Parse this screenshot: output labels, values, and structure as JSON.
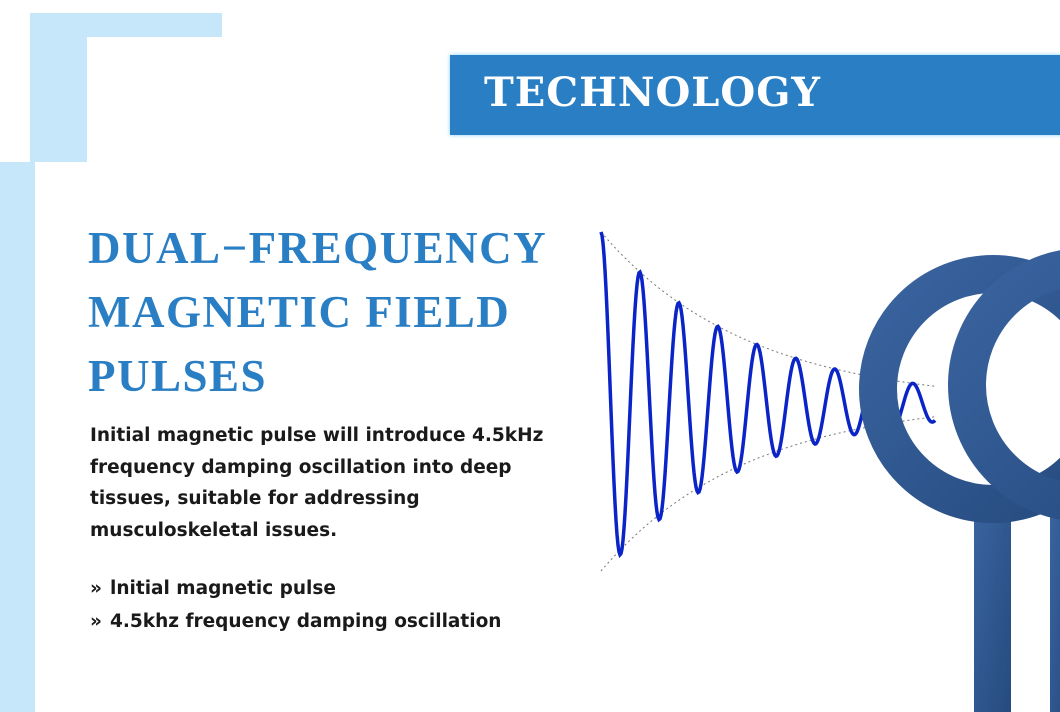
{
  "banner": {
    "title": "TECHNOLOGY"
  },
  "heading": {
    "lines": [
      "DUAL−FREQUENCY",
      "MAGNETIC FIELD",
      "PULSES"
    ]
  },
  "description": "Initial magnetic pulse will introduce 4.5kHz frequency damping oscillation into deep tissues, suitable for addressing musculoskeletal issues.",
  "bullets": [
    {
      "icon": "double-chevron-right-icon",
      "text": "lnitial magnetic pulse"
    },
    {
      "icon": "double-chevron-right-icon",
      "text": "4.5khz frequency damping oscillation"
    }
  ],
  "colors": {
    "accent": "#2a7fc4",
    "decor": "#c6e6fa",
    "wave": "#0a24c8",
    "coil": "#2e5588"
  }
}
